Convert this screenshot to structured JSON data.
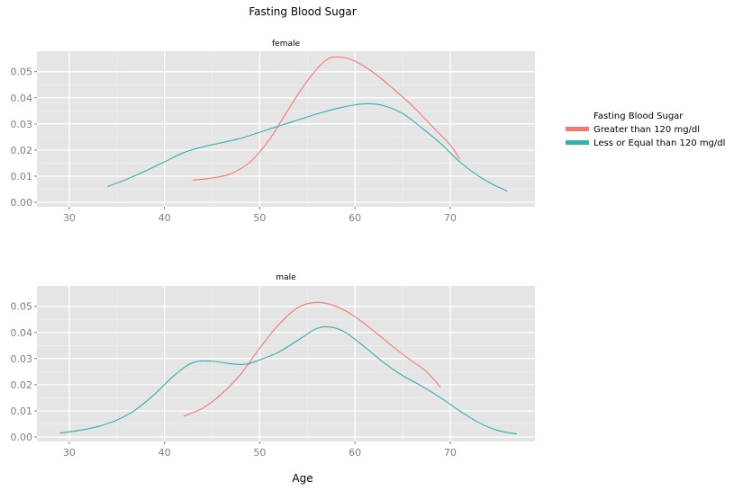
{
  "chart_data": {
    "type": "line",
    "title": "Fasting Blood Sugar",
    "xlabel": "Age",
    "ylabel": "",
    "xlim": [
      26.6,
      78.9
    ],
    "ylim": [
      -0.0017,
      0.0578
    ],
    "x_ticks": [
      30,
      40,
      50,
      60,
      70
    ],
    "y_ticks": [
      0,
      0.01,
      0.02,
      0.03,
      0.04,
      0.05
    ],
    "x_tick_labels": [
      "30",
      "40",
      "50",
      "60",
      "70"
    ],
    "y_tick_labels": [
      "0.00",
      "0.01",
      "0.02",
      "0.03",
      "0.04",
      "0.05"
    ],
    "grid": true,
    "legend": {
      "title": "Fasting Blood Sugar",
      "position": "right",
      "entries": [
        {
          "label": "Greater than 120 mg/dl",
          "color": "#F8766D"
        },
        {
          "label": "Less or Equal than 120 mg/dl",
          "color": "#31B0AC"
        }
      ]
    },
    "panels": [
      {
        "strip": "female",
        "series": [
          {
            "name": "Greater than 120 mg/dl",
            "color": "#F8766D",
            "points": [
              [
                43,
                0.0085
              ],
              [
                45,
                0.0093
              ],
              [
                47,
                0.011
              ],
              [
                49,
                0.0155
              ],
              [
                51,
                0.024
              ],
              [
                53,
                0.0355
              ],
              [
                55,
                0.0465
              ],
              [
                57,
                0.0545
              ],
              [
                58.5,
                0.0555
              ],
              [
                60,
                0.054
              ],
              [
                62,
                0.0495
              ],
              [
                64,
                0.0435
              ],
              [
                66,
                0.037
              ],
              [
                68,
                0.0295
              ],
              [
                70,
                0.022
              ],
              [
                71,
                0.0165
              ]
            ]
          },
          {
            "name": "Less or Equal than 120 mg/dl",
            "color": "#31B0AC",
            "points": [
              [
                34,
                0.006
              ],
              [
                36,
                0.0088
              ],
              [
                38,
                0.012
              ],
              [
                40,
                0.0155
              ],
              [
                42,
                0.019
              ],
              [
                44,
                0.0212
              ],
              [
                46,
                0.0228
              ],
              [
                48,
                0.0245
              ],
              [
                50,
                0.0268
              ],
              [
                52,
                0.0292
              ],
              [
                54,
                0.0315
              ],
              [
                56,
                0.0338
              ],
              [
                58,
                0.0358
              ],
              [
                60,
                0.0373
              ],
              [
                61.5,
                0.0377
              ],
              [
                63,
                0.037
              ],
              [
                65,
                0.034
              ],
              [
                67,
                0.0285
              ],
              [
                69,
                0.0225
              ],
              [
                71,
                0.0155
              ],
              [
                73,
                0.01
              ],
              [
                74.5,
                0.0068
              ],
              [
                76,
                0.0043
              ]
            ]
          }
        ]
      },
      {
        "strip": "male",
        "series": [
          {
            "name": "Greater than 120 mg/dl",
            "color": "#F8766D",
            "points": [
              [
                42,
                0.008
              ],
              [
                44,
                0.011
              ],
              [
                46,
                0.0165
              ],
              [
                48,
                0.024
              ],
              [
                50,
                0.034
              ],
              [
                52,
                0.043
              ],
              [
                54,
                0.0495
              ],
              [
                56,
                0.0515
              ],
              [
                58,
                0.05
              ],
              [
                60,
                0.046
              ],
              [
                62,
                0.0405
              ],
              [
                64,
                0.0345
              ],
              [
                66,
                0.029
              ],
              [
                67.5,
                0.025
              ],
              [
                69,
                0.019
              ]
            ]
          },
          {
            "name": "Less or Equal than 120 mg/dl",
            "color": "#31B0AC",
            "points": [
              [
                29,
                0.0015
              ],
              [
                31,
                0.0025
              ],
              [
                33,
                0.004
              ],
              [
                35,
                0.0065
              ],
              [
                37,
                0.0105
              ],
              [
                39,
                0.0165
              ],
              [
                41,
                0.0235
              ],
              [
                43,
                0.0285
              ],
              [
                45,
                0.029
              ],
              [
                47,
                0.028
              ],
              [
                48.5,
                0.0278
              ],
              [
                50,
                0.0295
              ],
              [
                52,
                0.0325
              ],
              [
                54,
                0.037
              ],
              [
                56,
                0.0415
              ],
              [
                57.5,
                0.042
              ],
              [
                59,
                0.04
              ],
              [
                61,
                0.0345
              ],
              [
                63,
                0.0285
              ],
              [
                65,
                0.0235
              ],
              [
                67,
                0.0195
              ],
              [
                69,
                0.015
              ],
              [
                71,
                0.01
              ],
              [
                73,
                0.0055
              ],
              [
                75,
                0.0025
              ],
              [
                77,
                0.0012
              ]
            ]
          }
        ]
      }
    ]
  }
}
